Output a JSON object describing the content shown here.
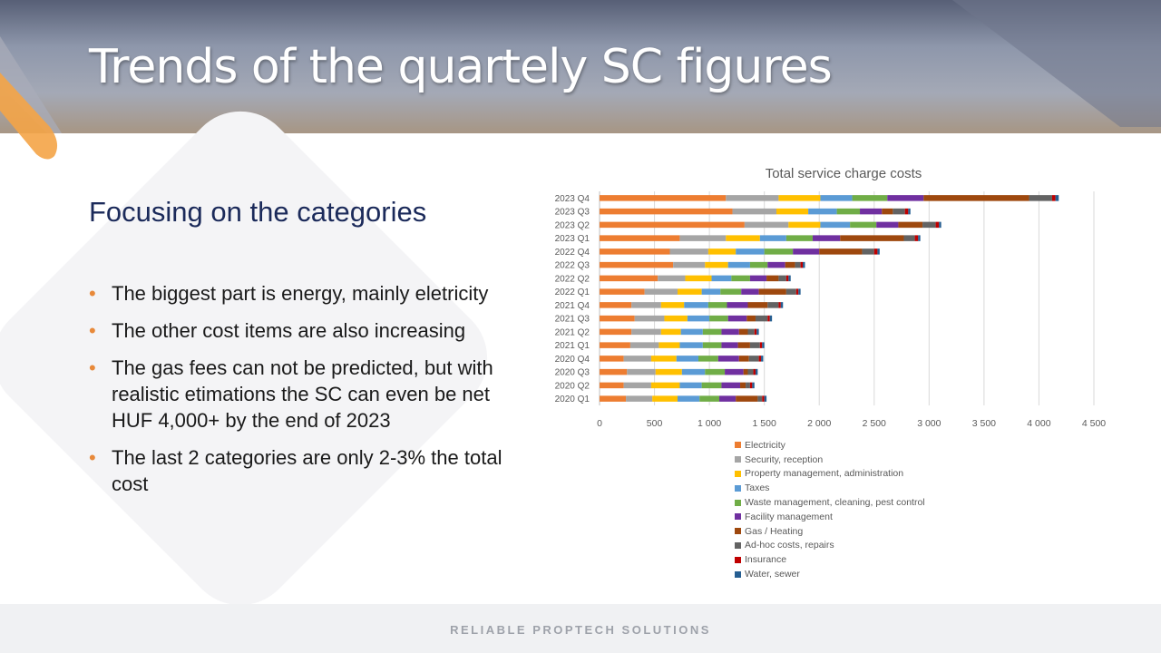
{
  "slide": {
    "title": "Trends of the quartely SC figures",
    "subtitle": "Focusing on the categories",
    "bullets": [
      "The biggest part is energy, mainly eletricity",
      "The other cost items are also increasing",
      "The gas fees can not be predicted, but with realistic etimations the  SC can even be net HUF 4,000+ by the end of 2023",
      "The last 2 categories are only 2-3% the total cost"
    ],
    "footer": "RELIABLE PROPTECH SOLUTIONS",
    "bullet_color": "#e8893a",
    "title_color": "#ffffff",
    "subtitle_color": "#1b2a5a"
  },
  "chart_data": {
    "type": "bar",
    "orientation": "horizontal",
    "stacked": true,
    "title": "Total service charge costs",
    "xlabel": "",
    "ylabel": "",
    "xlim": [
      0,
      4500
    ],
    "xticks": [
      0,
      500,
      1000,
      1500,
      2000,
      2500,
      3000,
      3500,
      4000,
      4500
    ],
    "xtick_labels": [
      "0",
      "500",
      "1 000",
      "1 500",
      "2 000",
      "2 500",
      "3 000",
      "3 500",
      "4 000",
      "4 500"
    ],
    "grid": "vertical",
    "legend_position": "bottom",
    "categories": [
      "2023 Q4",
      "2023 Q3",
      "2023 Q2",
      "2023 Q1",
      "2022 Q4",
      "2022 Q3",
      "2022 Q2",
      "2022 Q1",
      "2021 Q4",
      "2021 Q3",
      "2021 Q2",
      "2021 Q1",
      "2020 Q4",
      "2020 Q3",
      "2020 Q2",
      "2020 Q1"
    ],
    "series": [
      {
        "name": "Electricity",
        "color": "#ed7d31",
        "values": [
          1150,
          1210,
          1320,
          730,
          640,
          670,
          530,
          410,
          290,
          320,
          290,
          280,
          220,
          250,
          220,
          240
        ]
      },
      {
        "name": "Security, reception",
        "color": "#a5a5a5",
        "values": [
          480,
          400,
          400,
          420,
          350,
          290,
          250,
          300,
          270,
          270,
          270,
          260,
          250,
          260,
          250,
          240
        ]
      },
      {
        "name": "Property management, administration",
        "color": "#ffc000",
        "values": [
          380,
          290,
          290,
          310,
          250,
          210,
          240,
          220,
          210,
          210,
          180,
          190,
          230,
          240,
          260,
          230
        ]
      },
      {
        "name": "Taxes",
        "color": "#5b9bd5",
        "values": [
          290,
          260,
          270,
          240,
          260,
          200,
          180,
          170,
          220,
          200,
          200,
          210,
          200,
          210,
          200,
          200
        ]
      },
      {
        "name": "Waste management, cleaning, pest control",
        "color": "#70ad47",
        "values": [
          320,
          210,
          240,
          240,
          260,
          160,
          170,
          190,
          170,
          170,
          170,
          170,
          180,
          180,
          180,
          180
        ]
      },
      {
        "name": "Facility management",
        "color": "#7030a0",
        "values": [
          330,
          200,
          200,
          250,
          240,
          160,
          150,
          160,
          190,
          170,
          160,
          150,
          190,
          170,
          170,
          150
        ]
      },
      {
        "name": "Gas / Heating",
        "color": "#9e480e",
        "values": [
          960,
          100,
          220,
          580,
          390,
          90,
          110,
          250,
          180,
          80,
          80,
          110,
          90,
          40,
          50,
          200
        ]
      },
      {
        "name": "Ad-hoc costs, repairs",
        "color": "#636363",
        "values": [
          210,
          110,
          120,
          100,
          110,
          50,
          70,
          90,
          100,
          110,
          60,
          90,
          90,
          50,
          40,
          40
        ]
      },
      {
        "name": "Insurance",
        "color": "#c00000",
        "values": [
          30,
          30,
          30,
          30,
          30,
          20,
          20,
          20,
          20,
          20,
          20,
          20,
          20,
          20,
          20,
          20
        ]
      },
      {
        "name": "Water, sewer",
        "color": "#255e91",
        "values": [
          30,
          20,
          20,
          20,
          20,
          20,
          20,
          20,
          20,
          20,
          20,
          20,
          20,
          20,
          20,
          20
        ]
      }
    ]
  }
}
